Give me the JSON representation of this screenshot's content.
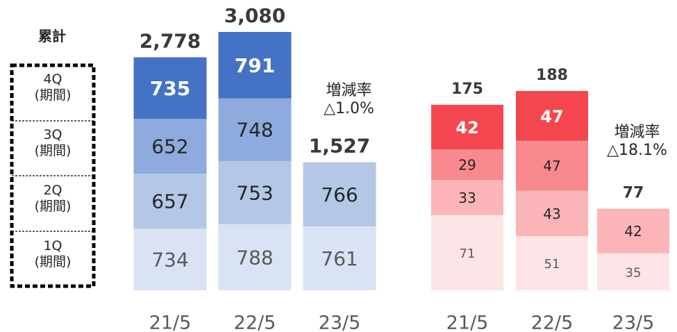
{
  "chart_data": [
    {
      "type": "stacked_bar",
      "legend_title": "累計",
      "categories": [
        "21/5",
        "22/5",
        "23/5"
      ],
      "series": [
        {
          "name": "1Q\n(期間)",
          "color": "#dae3f3",
          "values": [
            734,
            788,
            761
          ]
        },
        {
          "name": "2Q\n(期間)",
          "color": "#b4c7e7",
          "values": [
            657,
            753,
            766
          ]
        },
        {
          "name": "3Q\n(期間)",
          "color": "#8faadc",
          "values": [
            652,
            748,
            null
          ]
        },
        {
          "name": "4Q\n(期間)",
          "color": "#4472c4",
          "values": [
            735,
            791,
            null
          ]
        }
      ],
      "totals": [
        2778,
        3080,
        1527
      ],
      "totals_value_labels": [
        "2,778",
        "3,080",
        "1,527"
      ],
      "annotation": "増減率\n△1.0%"
    },
    {
      "type": "stacked_bar",
      "categories": [
        "21/5",
        "22/5",
        "23/5"
      ],
      "series": [
        {
          "name": "1Q\n(期間)",
          "color": "#fde4e6",
          "values": [
            71,
            51,
            35
          ]
        },
        {
          "name": "2Q\n(期間)",
          "color": "#fbb4b8",
          "values": [
            33,
            43,
            42
          ]
        },
        {
          "name": "3Q\n(期間)",
          "color": "#f88a8f",
          "values": [
            29,
            47,
            null
          ]
        },
        {
          "name": "4Q\n(期間)",
          "color": "#f4464e",
          "values": [
            42,
            47,
            null
          ]
        }
      ],
      "totals": [
        175,
        188,
        77
      ],
      "annotation": "増減率\n△18.1%"
    }
  ]
}
